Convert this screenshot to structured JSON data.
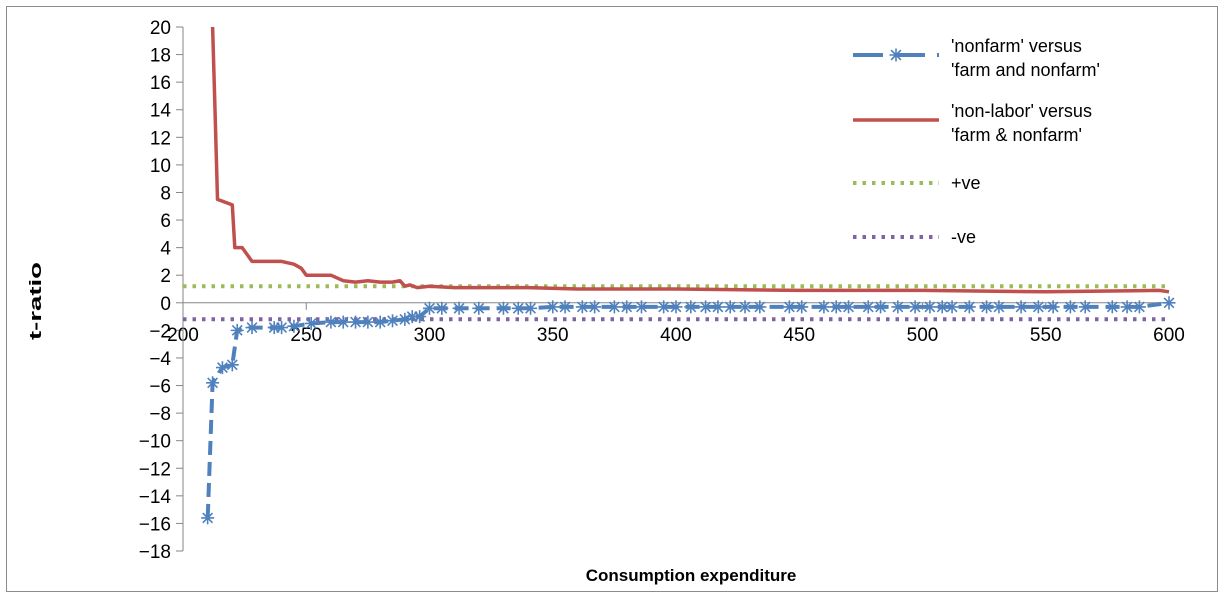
{
  "chart_data": {
    "type": "line",
    "title": "",
    "xlabel": "Consumption expenditure",
    "ylabel": "t-ratio",
    "xlim": [
      200,
      600
    ],
    "ylim": [
      -18,
      20
    ],
    "x_ticks": [
      200,
      250,
      300,
      350,
      400,
      450,
      500,
      550,
      600
    ],
    "y_ticks": [
      20,
      18,
      16,
      14,
      12,
      10,
      8,
      6,
      4,
      2,
      0,
      -2,
      -4,
      -6,
      -8,
      -10,
      -12,
      -14,
      -16,
      -18
    ],
    "grid": false,
    "legend_position": "right",
    "series": [
      {
        "name": "'nonfarm' versus 'farm and nonfarm'",
        "legend_lines": [
          "'nonfarm' versus",
          "'farm and nonfarm'"
        ],
        "color": "#4f81bd",
        "style": "dashed-star",
        "x": [
          210,
          212,
          216,
          220,
          222,
          228,
          237,
          240,
          245,
          252,
          260,
          265,
          270,
          275,
          280,
          285,
          290,
          293,
          296,
          300,
          305,
          312,
          320,
          330,
          336,
          341,
          350,
          355,
          362,
          367,
          375,
          380,
          386,
          395,
          400,
          406,
          412,
          417,
          422,
          428,
          434,
          446,
          451,
          460,
          465,
          470,
          478,
          483,
          490,
          497,
          503,
          508,
          512,
          519,
          526,
          531,
          540,
          547,
          553,
          560,
          566,
          577,
          583,
          588,
          600
        ],
        "y": [
          -15.6,
          -5.8,
          -4.7,
          -4.5,
          -2.0,
          -1.8,
          -1.8,
          -1.8,
          -1.7,
          -1.5,
          -1.4,
          -1.4,
          -1.4,
          -1.4,
          -1.4,
          -1.3,
          -1.2,
          -1.0,
          -1.0,
          -0.4,
          -0.4,
          -0.4,
          -0.4,
          -0.4,
          -0.4,
          -0.4,
          -0.3,
          -0.3,
          -0.3,
          -0.3,
          -0.3,
          -0.3,
          -0.3,
          -0.3,
          -0.3,
          -0.3,
          -0.3,
          -0.3,
          -0.3,
          -0.3,
          -0.3,
          -0.3,
          -0.3,
          -0.3,
          -0.3,
          -0.3,
          -0.3,
          -0.3,
          -0.3,
          -0.3,
          -0.3,
          -0.3,
          -0.3,
          -0.3,
          -0.3,
          -0.3,
          -0.3,
          -0.3,
          -0.3,
          -0.3,
          -0.3,
          -0.3,
          -0.3,
          -0.3,
          0.0
        ]
      },
      {
        "name": "'non-labor' versus 'farm & nonfarm'",
        "legend_lines": [
          "'non-labor' versus",
          "'farm & nonfarm'"
        ],
        "color": "#c0504d",
        "style": "solid",
        "x": [
          212,
          213,
          214,
          220,
          221,
          224,
          228,
          240,
          245,
          248,
          250,
          255,
          260,
          265,
          270,
          275,
          280,
          285,
          288,
          290,
          292,
          295,
          300,
          310,
          320,
          340,
          360,
          400,
          450,
          500,
          550,
          596,
          600
        ],
        "y": [
          20,
          14,
          7.5,
          7.1,
          4.0,
          4.0,
          3.0,
          3.0,
          2.8,
          2.5,
          2.0,
          2.0,
          2.0,
          1.6,
          1.5,
          1.6,
          1.5,
          1.5,
          1.6,
          1.2,
          1.3,
          1.1,
          1.2,
          1.1,
          1.1,
          1.1,
          1.0,
          1.0,
          0.9,
          0.9,
          0.8,
          0.9,
          0.8
        ]
      },
      {
        "name": "+ve",
        "legend_lines": [
          "+ve"
        ],
        "color": "#9bbb59",
        "style": "dotted",
        "x": [
          200,
          600
        ],
        "y": [
          1.2,
          1.2
        ]
      },
      {
        "name": "-ve",
        "legend_lines": [
          "-ve"
        ],
        "color": "#8064a2",
        "style": "dotted",
        "x": [
          200,
          600
        ],
        "y": [
          -1.2,
          -1.2
        ]
      }
    ]
  }
}
